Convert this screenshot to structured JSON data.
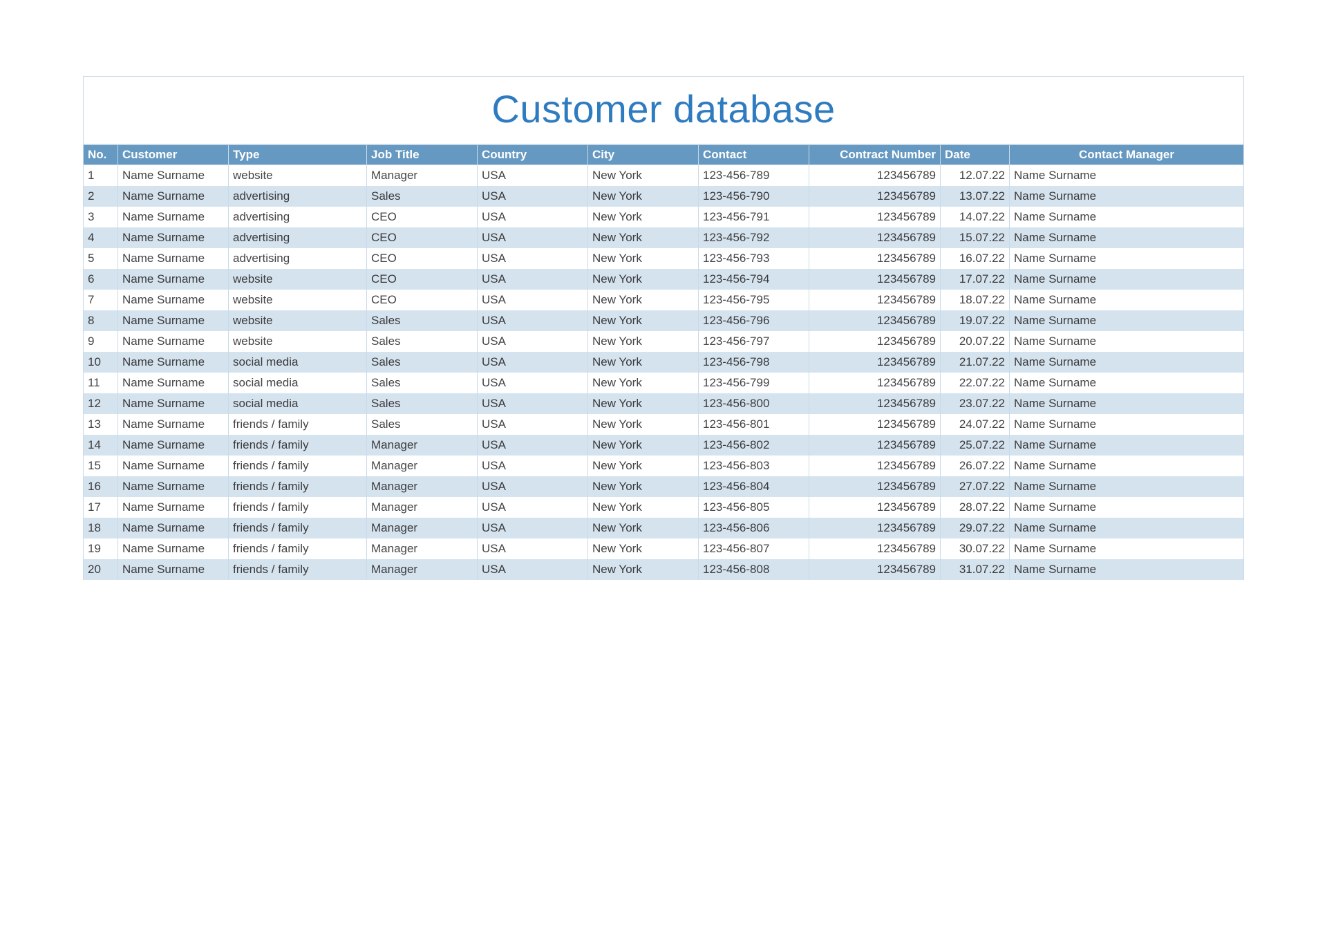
{
  "title": "Customer database",
  "colors": {
    "header_bg": "#6699c2",
    "header_text": "#ffffff",
    "row_even_bg": "#d5e3ef",
    "row_odd_bg": "#ffffff",
    "border": "#c9dae8",
    "title_color": "#2f7bbf"
  },
  "columns": [
    {
      "key": "no",
      "label": "No.",
      "align": "left"
    },
    {
      "key": "customer",
      "label": "Customer",
      "align": "left"
    },
    {
      "key": "type",
      "label": "Type",
      "align": "left"
    },
    {
      "key": "job",
      "label": "Job Title",
      "align": "left"
    },
    {
      "key": "country",
      "label": "Country",
      "align": "left"
    },
    {
      "key": "city",
      "label": "City",
      "align": "left"
    },
    {
      "key": "contact",
      "label": "Contact",
      "align": "left"
    },
    {
      "key": "cnum",
      "label": "Contract Number",
      "align": "right"
    },
    {
      "key": "date",
      "label": "Date",
      "align": "left"
    },
    {
      "key": "manager",
      "label": "Contact Manager",
      "align": "center"
    }
  ],
  "rows": [
    {
      "no": "1",
      "customer": "Name Surname",
      "type": "website",
      "job": "Manager",
      "country": "USA",
      "city": "New York",
      "contact": "123-456-789",
      "cnum": "123456789",
      "date": "12.07.22",
      "manager": "Name Surname"
    },
    {
      "no": "2",
      "customer": "Name Surname",
      "type": "advertising",
      "job": "Sales",
      "country": "USA",
      "city": "New York",
      "contact": "123-456-790",
      "cnum": "123456789",
      "date": "13.07.22",
      "manager": "Name Surname"
    },
    {
      "no": "3",
      "customer": "Name Surname",
      "type": "advertising",
      "job": "CEO",
      "country": "USA",
      "city": "New York",
      "contact": "123-456-791",
      "cnum": "123456789",
      "date": "14.07.22",
      "manager": "Name Surname"
    },
    {
      "no": "4",
      "customer": "Name Surname",
      "type": "advertising",
      "job": "CEO",
      "country": "USA",
      "city": "New York",
      "contact": "123-456-792",
      "cnum": "123456789",
      "date": "15.07.22",
      "manager": "Name Surname"
    },
    {
      "no": "5",
      "customer": "Name Surname",
      "type": "advertising",
      "job": "CEO",
      "country": "USA",
      "city": "New York",
      "contact": "123-456-793",
      "cnum": "123456789",
      "date": "16.07.22",
      "manager": "Name Surname"
    },
    {
      "no": "6",
      "customer": "Name Surname",
      "type": "website",
      "job": "CEO",
      "country": "USA",
      "city": "New York",
      "contact": "123-456-794",
      "cnum": "123456789",
      "date": "17.07.22",
      "manager": "Name Surname"
    },
    {
      "no": "7",
      "customer": "Name Surname",
      "type": "website",
      "job": "CEO",
      "country": "USA",
      "city": "New York",
      "contact": "123-456-795",
      "cnum": "123456789",
      "date": "18.07.22",
      "manager": "Name Surname"
    },
    {
      "no": "8",
      "customer": "Name Surname",
      "type": "website",
      "job": "Sales",
      "country": "USA",
      "city": "New York",
      "contact": "123-456-796",
      "cnum": "123456789",
      "date": "19.07.22",
      "manager": "Name Surname"
    },
    {
      "no": "9",
      "customer": "Name Surname",
      "type": "website",
      "job": "Sales",
      "country": "USA",
      "city": "New York",
      "contact": "123-456-797",
      "cnum": "123456789",
      "date": "20.07.22",
      "manager": "Name Surname"
    },
    {
      "no": "10",
      "customer": "Name Surname",
      "type": "social media",
      "job": "Sales",
      "country": "USA",
      "city": "New York",
      "contact": "123-456-798",
      "cnum": "123456789",
      "date": "21.07.22",
      "manager": "Name Surname"
    },
    {
      "no": "11",
      "customer": "Name Surname",
      "type": "social media",
      "job": "Sales",
      "country": "USA",
      "city": "New York",
      "contact": "123-456-799",
      "cnum": "123456789",
      "date": "22.07.22",
      "manager": "Name Surname"
    },
    {
      "no": "12",
      "customer": "Name Surname",
      "type": "social media",
      "job": "Sales",
      "country": "USA",
      "city": "New York",
      "contact": "123-456-800",
      "cnum": "123456789",
      "date": "23.07.22",
      "manager": "Name Surname"
    },
    {
      "no": "13",
      "customer": "Name Surname",
      "type": "friends / family",
      "job": "Sales",
      "country": "USA",
      "city": "New York",
      "contact": "123-456-801",
      "cnum": "123456789",
      "date": "24.07.22",
      "manager": "Name Surname"
    },
    {
      "no": "14",
      "customer": "Name Surname",
      "type": "friends / family",
      "job": "Manager",
      "country": "USA",
      "city": "New York",
      "contact": "123-456-802",
      "cnum": "123456789",
      "date": "25.07.22",
      "manager": "Name Surname"
    },
    {
      "no": "15",
      "customer": "Name Surname",
      "type": "friends / family",
      "job": "Manager",
      "country": "USA",
      "city": "New York",
      "contact": "123-456-803",
      "cnum": "123456789",
      "date": "26.07.22",
      "manager": "Name Surname"
    },
    {
      "no": "16",
      "customer": "Name Surname",
      "type": "friends / family",
      "job": "Manager",
      "country": "USA",
      "city": "New York",
      "contact": "123-456-804",
      "cnum": "123456789",
      "date": "27.07.22",
      "manager": "Name Surname"
    },
    {
      "no": "17",
      "customer": "Name Surname",
      "type": "friends / family",
      "job": "Manager",
      "country": "USA",
      "city": "New York",
      "contact": "123-456-805",
      "cnum": "123456789",
      "date": "28.07.22",
      "manager": "Name Surname"
    },
    {
      "no": "18",
      "customer": "Name Surname",
      "type": "friends / family",
      "job": "Manager",
      "country": "USA",
      "city": "New York",
      "contact": "123-456-806",
      "cnum": "123456789",
      "date": "29.07.22",
      "manager": "Name Surname"
    },
    {
      "no": "19",
      "customer": "Name Surname",
      "type": "friends / family",
      "job": "Manager",
      "country": "USA",
      "city": "New York",
      "contact": "123-456-807",
      "cnum": "123456789",
      "date": "30.07.22",
      "manager": "Name Surname"
    },
    {
      "no": "20",
      "customer": "Name Surname",
      "type": "friends / family",
      "job": "Manager",
      "country": "USA",
      "city": "New York",
      "contact": "123-456-808",
      "cnum": "123456789",
      "date": "31.07.22",
      "manager": "Name Surname"
    }
  ]
}
